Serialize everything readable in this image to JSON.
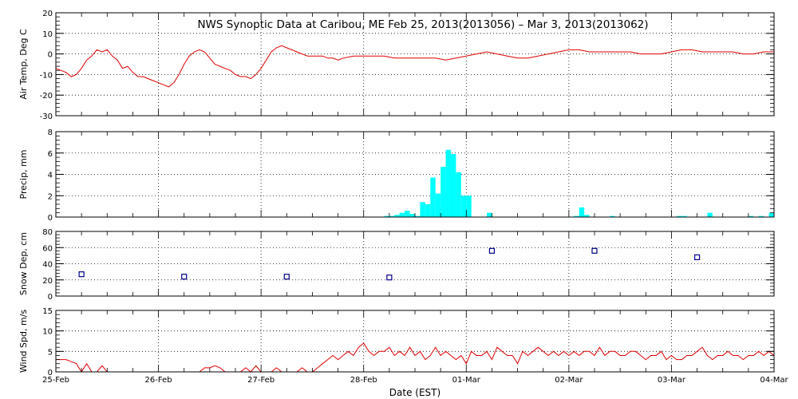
{
  "title": "NWS Synoptic Data at Caribou, ME   Feb 25, 2013(2013056) – Mar  3, 2013(2013062)",
  "xlabel": "Date (EST)",
  "x_ticks": [
    "25-Feb",
    "26-Feb",
    "27-Feb",
    "28-Feb",
    "01-Mar",
    "02-Mar",
    "03-Mar",
    "04-Mar"
  ],
  "colors": {
    "temp": "#e00000",
    "precip": "#00ffff",
    "snow": "#00008b",
    "wind": "#e00000",
    "grid": "#000000"
  },
  "chart_data": [
    {
      "type": "line",
      "ylabel": "Air Temp, Deg C",
      "ylim": [
        -30,
        20
      ],
      "yticks": [
        20,
        10,
        0,
        -10,
        -20,
        -30
      ],
      "grid": true,
      "x_unit": "days since 25-Feb 00:00",
      "series": [
        {
          "color": "#e00000",
          "x": [
            0,
            0.1,
            0.15,
            0.2,
            0.25,
            0.3,
            0.35,
            0.4,
            0.45,
            0.5,
            0.55,
            0.6,
            0.65,
            0.7,
            0.75,
            0.8,
            0.85,
            0.9,
            0.95,
            1.0,
            1.05,
            1.1,
            1.15,
            1.2,
            1.25,
            1.3,
            1.35,
            1.4,
            1.45,
            1.5,
            1.55,
            1.6,
            1.65,
            1.7,
            1.75,
            1.8,
            1.85,
            1.9,
            1.95,
            2.0,
            2.05,
            2.1,
            2.15,
            2.2,
            2.25,
            2.3,
            2.35,
            2.4,
            2.45,
            2.5,
            2.55,
            2.6,
            2.65,
            2.7,
            2.75,
            2.8,
            2.9,
            3.0,
            3.1,
            3.2,
            3.3,
            3.4,
            3.5,
            3.6,
            3.7,
            3.8,
            3.9,
            4.0,
            4.1,
            4.2,
            4.3,
            4.4,
            4.5,
            4.6,
            4.7,
            4.8,
            4.9,
            5.0,
            5.1,
            5.2,
            5.3,
            5.4,
            5.5,
            5.6,
            5.7,
            5.8,
            5.9,
            6.0,
            6.1,
            6.2,
            6.3,
            6.4,
            6.5,
            6.6,
            6.7,
            6.8,
            6.9,
            7.0
          ],
          "y": [
            -7,
            -9,
            -11,
            -10,
            -7,
            -3,
            -1,
            2,
            1,
            2,
            -1,
            -3,
            -7,
            -6,
            -9,
            -11,
            -11,
            -12,
            -13,
            -14,
            -15,
            -16,
            -14,
            -10,
            -5,
            -1,
            1,
            2,
            1,
            -2,
            -5,
            -6,
            -7,
            -8,
            -10,
            -11,
            -11,
            -12,
            -10,
            -7,
            -3,
            1,
            3,
            4,
            3,
            2,
            1,
            0,
            -1,
            -1,
            -1,
            -1,
            -2,
            -2,
            -3,
            -2,
            -1,
            -1,
            -1,
            -1,
            -2,
            -2,
            -2,
            -2,
            -2,
            -3,
            -2,
            -1,
            0,
            1,
            0,
            -1,
            -2,
            -2,
            -1,
            0,
            1,
            2,
            2,
            1,
            1,
            1,
            1,
            1,
            0,
            0,
            0,
            1,
            2,
            2,
            1,
            1,
            1,
            1,
            0,
            0,
            1,
            1
          ]
        }
      ]
    },
    {
      "type": "bar",
      "ylabel": "Precip, mm",
      "ylim": [
        0,
        8
      ],
      "yticks": [
        8,
        6,
        4,
        2,
        0
      ],
      "grid": true,
      "x_unit": "days since 25-Feb 00:00",
      "bar_width_days": 0.05,
      "x": [
        3.2,
        3.25,
        3.3,
        3.35,
        3.4,
        3.45,
        3.5,
        3.55,
        3.6,
        3.65,
        3.7,
        3.75,
        3.8,
        3.85,
        3.9,
        3.95,
        4.0,
        4.2,
        5.05,
        5.1,
        5.15,
        5.4,
        6.05,
        6.1,
        6.35,
        6.75,
        6.85,
        6.95
      ],
      "values": [
        0.1,
        0.1,
        0.2,
        0.4,
        0.6,
        0.3,
        0.1,
        1.4,
        1.2,
        3.7,
        2.2,
        4.7,
        6.3,
        5.9,
        4.2,
        2.0,
        2.0,
        0.4,
        0.1,
        0.9,
        0.2,
        0.1,
        0.1,
        0.1,
        0.4,
        0.1,
        0.1,
        0.4
      ]
    },
    {
      "type": "scatter",
      "ylabel": "Snow Dep, cm",
      "ylim": [
        0,
        80
      ],
      "yticks": [
        80,
        60,
        40,
        20,
        0
      ],
      "grid": true,
      "x_unit": "days since 25-Feb 00:00",
      "marker": "open-square",
      "x": [
        0.25,
        1.25,
        2.25,
        3.25,
        4.25,
        5.25,
        6.25
      ],
      "y": [
        27,
        24,
        24,
        23,
        56,
        56,
        48
      ]
    },
    {
      "type": "line",
      "ylabel": "Wind Spd, m/s",
      "ylim": [
        0,
        15
      ],
      "yticks": [
        15,
        10,
        5,
        0
      ],
      "grid": true,
      "x_unit": "days since 25-Feb 00:00",
      "series": [
        {
          "color": "#e00000",
          "x": [
            0,
            0.1,
            0.15,
            0.2,
            0.25,
            0.3,
            0.35,
            0.4,
            0.45,
            0.5,
            0.55,
            0.6,
            0.65,
            0.7,
            0.8,
            1.0,
            1.2,
            1.4,
            1.45,
            1.5,
            1.55,
            1.6,
            1.65,
            1.7,
            1.75,
            1.8,
            1.85,
            1.9,
            1.95,
            2.0,
            2.05,
            2.1,
            2.15,
            2.2,
            2.25,
            2.3,
            2.35,
            2.4,
            2.45,
            2.5,
            2.55,
            2.6,
            2.65,
            2.7,
            2.75,
            2.8,
            2.85,
            2.9,
            2.95,
            3.0,
            3.05,
            3.1,
            3.15,
            3.2,
            3.25,
            3.3,
            3.35,
            3.4,
            3.45,
            3.5,
            3.55,
            3.6,
            3.65,
            3.7,
            3.75,
            3.8,
            3.85,
            3.9,
            3.95,
            4.0,
            4.05,
            4.1,
            4.15,
            4.2,
            4.25,
            4.3,
            4.35,
            4.4,
            4.45,
            4.5,
            4.55,
            4.6,
            4.65,
            4.7,
            4.75,
            4.8,
            4.85,
            4.9,
            4.95,
            5.0,
            5.05,
            5.1,
            5.15,
            5.2,
            5.25,
            5.3,
            5.35,
            5.4,
            5.45,
            5.5,
            5.55,
            5.6,
            5.65,
            5.7,
            5.75,
            5.8,
            5.85,
            5.9,
            5.95,
            6.0,
            6.05,
            6.1,
            6.15,
            6.2,
            6.25,
            6.3,
            6.35,
            6.4,
            6.45,
            6.5,
            6.55,
            6.6,
            6.65,
            6.7,
            6.75,
            6.8,
            6.85,
            6.9,
            6.95,
            7.0
          ],
          "y": [
            3,
            3,
            2.5,
            2,
            0,
            2,
            0,
            0,
            1.5,
            0,
            0,
            0,
            0,
            0,
            0,
            0,
            0,
            0,
            1,
            1,
            1.5,
            1,
            0,
            0,
            0,
            0,
            1,
            0,
            1.5,
            0,
            0,
            0,
            1,
            0,
            0,
            0,
            0,
            1,
            0,
            0,
            1,
            2,
            3,
            4,
            3,
            4,
            5,
            4,
            6,
            7,
            5,
            4,
            5,
            5,
            6,
            4,
            5,
            4,
            6,
            4,
            5,
            3,
            4,
            6,
            4,
            5,
            4,
            3,
            4,
            2,
            5,
            4,
            4,
            5,
            3,
            6,
            5,
            4,
            4,
            2,
            5,
            4,
            5,
            6,
            5,
            4,
            5,
            4,
            5,
            4,
            5,
            4,
            5,
            5,
            4,
            6,
            4,
            5,
            5,
            4,
            4,
            5,
            5,
            4,
            3,
            4,
            4,
            5,
            3,
            4,
            3,
            3,
            4,
            4,
            5,
            6,
            4,
            3,
            4,
            4,
            5,
            4,
            4,
            3,
            4,
            4,
            5,
            4,
            5,
            4
          ]
        }
      ]
    }
  ]
}
